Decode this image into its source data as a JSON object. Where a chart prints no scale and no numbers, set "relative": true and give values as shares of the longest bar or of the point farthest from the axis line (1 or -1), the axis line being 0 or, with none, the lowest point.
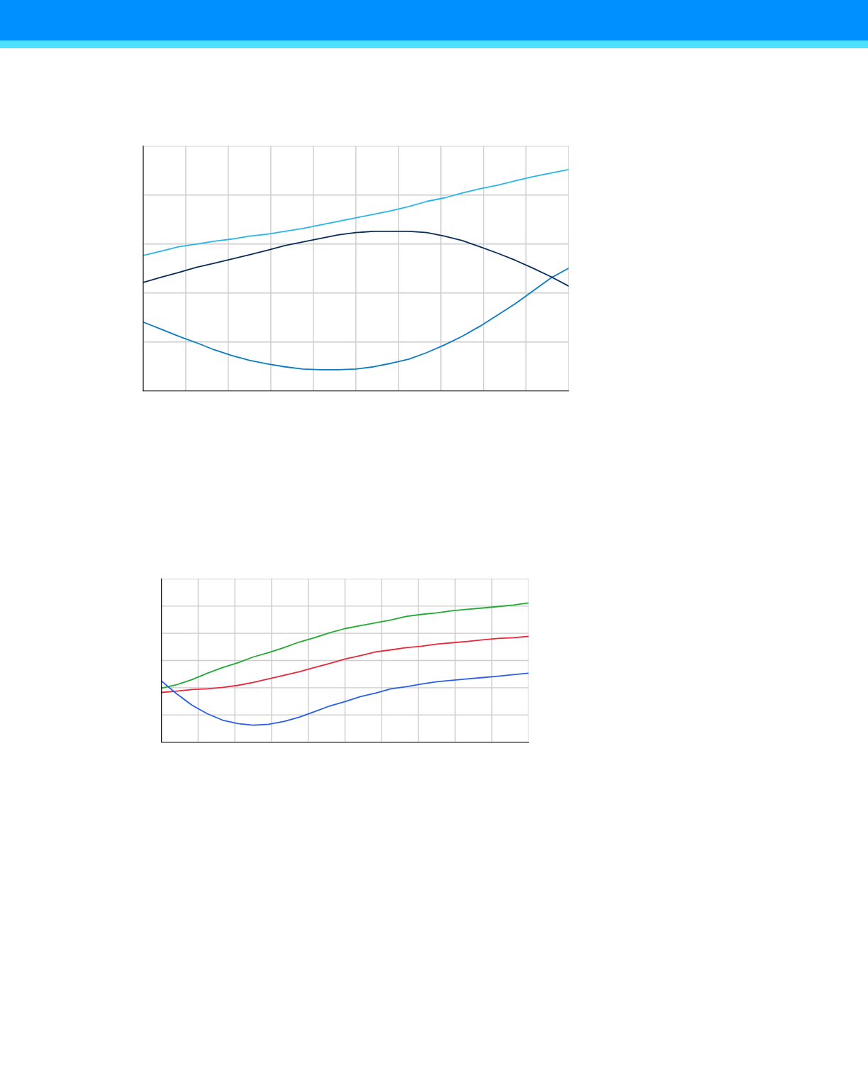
{
  "chart_data": [
    {
      "type": "line",
      "relative": true,
      "grid": true,
      "tick_labels": false,
      "categories": [
        null,
        null,
        null,
        null,
        null,
        null,
        null,
        null,
        null,
        null,
        null,
        null,
        null,
        null,
        null,
        null,
        null,
        null,
        null,
        null,
        null,
        null,
        null,
        null,
        null
      ],
      "series": [
        {
          "color": "#29b5e8",
          "values": [
            0.612,
            0.631,
            0.651,
            0.663,
            0.676,
            0.686,
            0.699,
            0.708,
            0.721,
            0.734,
            0.75,
            0.766,
            0.782,
            0.798,
            0.814,
            0.833,
            0.856,
            0.872,
            0.894,
            0.913,
            0.929,
            0.949,
            0.968,
            0.984,
            1
          ]
        },
        {
          "color": "#0a7cc4",
          "values": [
            0.311,
            0.279,
            0.247,
            0.218,
            0.186,
            0.16,
            0.138,
            0.122,
            0.109,
            0.099,
            0.096,
            0.096,
            0.099,
            0.109,
            0.125,
            0.144,
            0.173,
            0.208,
            0.247,
            0.292,
            0.343,
            0.394,
            0.452,
            0.51,
            0.554
          ]
        },
        {
          "color": "#0b2d5a",
          "values": [
            0.49,
            0.513,
            0.535,
            0.558,
            0.577,
            0.596,
            0.615,
            0.635,
            0.657,
            0.673,
            0.689,
            0.705,
            0.715,
            0.721,
            0.721,
            0.721,
            0.715,
            0.699,
            0.679,
            0.651,
            0.622,
            0.59,
            0.554,
            0.516,
            0.474
          ]
        }
      ]
    },
    {
      "type": "line",
      "relative": true,
      "grid": true,
      "tick_labels": false,
      "categories": [
        null,
        null,
        null,
        null,
        null,
        null,
        null,
        null,
        null,
        null,
        null,
        null,
        null,
        null,
        null,
        null,
        null,
        null,
        null,
        null,
        null,
        null,
        null,
        null,
        null
      ],
      "series": [
        {
          "color": "#22aa33",
          "values": [
            0.388,
            0.413,
            0.449,
            0.495,
            0.536,
            0.571,
            0.612,
            0.643,
            0.679,
            0.719,
            0.75,
            0.786,
            0.816,
            0.837,
            0.857,
            0.878,
            0.903,
            0.918,
            0.929,
            0.944,
            0.954,
            0.964,
            0.974,
            0.985,
            1
          ]
        },
        {
          "color": "#e8283c",
          "values": [
            0.357,
            0.367,
            0.378,
            0.383,
            0.393,
            0.408,
            0.429,
            0.454,
            0.48,
            0.505,
            0.536,
            0.566,
            0.597,
            0.622,
            0.648,
            0.663,
            0.679,
            0.689,
            0.704,
            0.714,
            0.724,
            0.735,
            0.745,
            0.75,
            0.76
          ]
        },
        {
          "color": "#2a5de8",
          "values": [
            0.439,
            0.347,
            0.265,
            0.204,
            0.158,
            0.133,
            0.122,
            0.128,
            0.148,
            0.179,
            0.219,
            0.26,
            0.291,
            0.327,
            0.352,
            0.383,
            0.398,
            0.418,
            0.434,
            0.444,
            0.454,
            0.464,
            0.474,
            0.485,
            0.495
          ]
        }
      ]
    }
  ]
}
